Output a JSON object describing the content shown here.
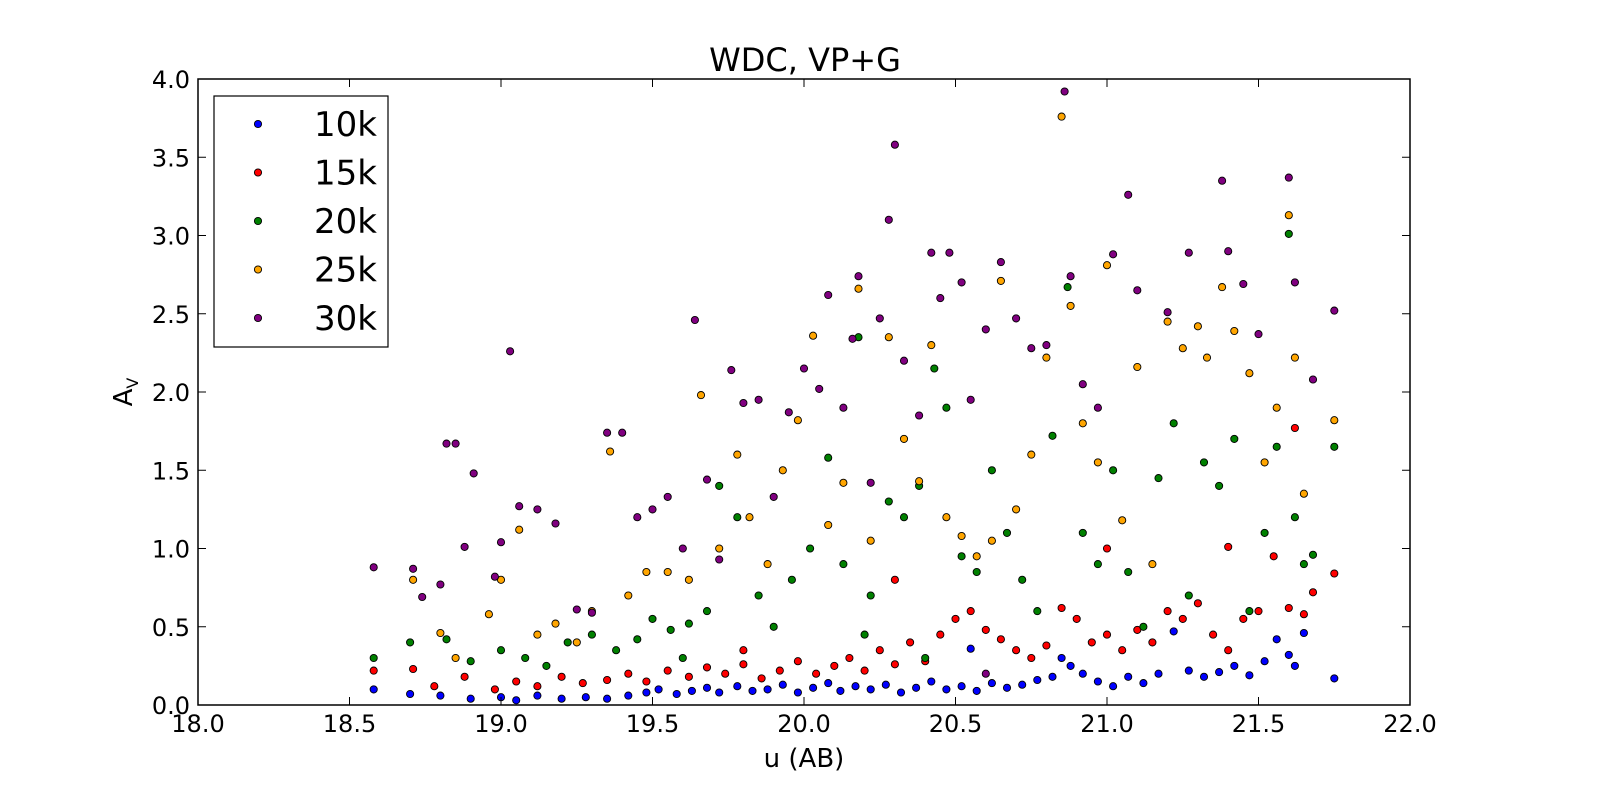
{
  "chart_data": {
    "type": "scatter",
    "title": "WDC, VP+G",
    "xlabel": "u (AB)",
    "ylabel_main": "A",
    "ylabel_sub": "V",
    "xlim": [
      18.0,
      22.0
    ],
    "ylim": [
      0.0,
      4.0
    ],
    "xticks": [
      "18.0",
      "18.5",
      "19.0",
      "19.5",
      "20.0",
      "20.5",
      "21.0",
      "21.5",
      "22.0"
    ],
    "yticks": [
      "0.0",
      "0.5",
      "1.0",
      "1.5",
      "2.0",
      "2.5",
      "3.0",
      "3.5",
      "4.0"
    ],
    "grid": false,
    "legend_position": "top-left",
    "series": [
      {
        "name": "10k",
        "color": "#0000ff",
        "points": [
          [
            18.58,
            0.1
          ],
          [
            18.7,
            0.07
          ],
          [
            18.8,
            0.06
          ],
          [
            18.9,
            0.04
          ],
          [
            19.0,
            0.05
          ],
          [
            19.05,
            0.03
          ],
          [
            19.12,
            0.06
          ],
          [
            19.2,
            0.04
          ],
          [
            19.28,
            0.05
          ],
          [
            19.35,
            0.04
          ],
          [
            19.42,
            0.06
          ],
          [
            19.48,
            0.08
          ],
          [
            19.52,
            0.1
          ],
          [
            19.58,
            0.07
          ],
          [
            19.63,
            0.09
          ],
          [
            19.68,
            0.11
          ],
          [
            19.72,
            0.08
          ],
          [
            19.78,
            0.12
          ],
          [
            19.83,
            0.09
          ],
          [
            19.88,
            0.1
          ],
          [
            19.93,
            0.13
          ],
          [
            19.98,
            0.08
          ],
          [
            20.03,
            0.11
          ],
          [
            20.08,
            0.14
          ],
          [
            20.12,
            0.09
          ],
          [
            20.17,
            0.12
          ],
          [
            20.22,
            0.1
          ],
          [
            20.27,
            0.13
          ],
          [
            20.32,
            0.08
          ],
          [
            20.37,
            0.11
          ],
          [
            20.42,
            0.15
          ],
          [
            20.47,
            0.1
          ],
          [
            20.52,
            0.12
          ],
          [
            20.57,
            0.09
          ],
          [
            20.62,
            0.14
          ],
          [
            20.67,
            0.11
          ],
          [
            20.72,
            0.13
          ],
          [
            20.77,
            0.16
          ],
          [
            20.82,
            0.18
          ],
          [
            20.85,
            0.3
          ],
          [
            20.88,
            0.25
          ],
          [
            20.92,
            0.2
          ],
          [
            20.97,
            0.15
          ],
          [
            21.02,
            0.12
          ],
          [
            21.07,
            0.18
          ],
          [
            21.12,
            0.14
          ],
          [
            21.17,
            0.2
          ],
          [
            21.22,
            0.47
          ],
          [
            21.27,
            0.22
          ],
          [
            21.32,
            0.18
          ],
          [
            21.37,
            0.21
          ],
          [
            21.42,
            0.25
          ],
          [
            21.47,
            0.19
          ],
          [
            21.52,
            0.28
          ],
          [
            21.56,
            0.42
          ],
          [
            21.6,
            0.32
          ],
          [
            21.62,
            0.25
          ],
          [
            21.65,
            0.46
          ],
          [
            21.75,
            0.17
          ],
          [
            20.55,
            0.36
          ]
        ]
      },
      {
        "name": "15k",
        "color": "#ff0000",
        "points": [
          [
            18.58,
            0.22
          ],
          [
            18.71,
            0.23
          ],
          [
            18.78,
            0.12
          ],
          [
            18.88,
            0.18
          ],
          [
            18.98,
            0.1
          ],
          [
            19.05,
            0.15
          ],
          [
            19.12,
            0.12
          ],
          [
            19.2,
            0.18
          ],
          [
            19.27,
            0.14
          ],
          [
            19.35,
            0.16
          ],
          [
            19.42,
            0.2
          ],
          [
            19.48,
            0.15
          ],
          [
            19.55,
            0.22
          ],
          [
            19.62,
            0.18
          ],
          [
            19.68,
            0.24
          ],
          [
            19.74,
            0.2
          ],
          [
            19.8,
            0.26
          ],
          [
            19.86,
            0.17
          ],
          [
            19.92,
            0.22
          ],
          [
            19.98,
            0.28
          ],
          [
            20.04,
            0.2
          ],
          [
            20.1,
            0.25
          ],
          [
            20.15,
            0.3
          ],
          [
            20.2,
            0.22
          ],
          [
            20.25,
            0.35
          ],
          [
            20.3,
            0.26
          ],
          [
            20.35,
            0.4
          ],
          [
            20.4,
            0.28
          ],
          [
            20.45,
            0.45
          ],
          [
            20.5,
            0.55
          ],
          [
            20.55,
            0.6
          ],
          [
            20.6,
            0.48
          ],
          [
            20.65,
            0.42
          ],
          [
            20.7,
            0.35
          ],
          [
            20.75,
            0.3
          ],
          [
            20.8,
            0.38
          ],
          [
            20.85,
            0.62
          ],
          [
            20.9,
            0.55
          ],
          [
            20.95,
            0.4
          ],
          [
            21.0,
            0.45
          ],
          [
            21.05,
            0.35
          ],
          [
            21.1,
            0.48
          ],
          [
            21.15,
            0.4
          ],
          [
            21.2,
            0.6
          ],
          [
            21.25,
            0.55
          ],
          [
            21.3,
            0.65
          ],
          [
            21.35,
            0.45
          ],
          [
            21.4,
            0.35
          ],
          [
            21.45,
            0.55
          ],
          [
            21.5,
            0.6
          ],
          [
            21.55,
            0.95
          ],
          [
            21.6,
            0.62
          ],
          [
            21.62,
            1.77
          ],
          [
            21.65,
            0.58
          ],
          [
            21.68,
            0.72
          ],
          [
            21.75,
            0.84
          ],
          [
            21.0,
            1.0
          ],
          [
            21.4,
            1.01
          ],
          [
            20.3,
            0.8
          ],
          [
            19.8,
            0.35
          ]
        ]
      },
      {
        "name": "20k",
        "color": "#008000",
        "points": [
          [
            18.58,
            0.3
          ],
          [
            18.7,
            0.4
          ],
          [
            18.82,
            0.42
          ],
          [
            18.9,
            0.28
          ],
          [
            19.0,
            0.35
          ],
          [
            19.08,
            0.3
          ],
          [
            19.15,
            0.25
          ],
          [
            19.22,
            0.4
          ],
          [
            19.3,
            0.45
          ],
          [
            19.38,
            0.35
          ],
          [
            19.45,
            0.42
          ],
          [
            19.5,
            0.55
          ],
          [
            19.56,
            0.48
          ],
          [
            19.62,
            0.52
          ],
          [
            19.68,
            0.6
          ],
          [
            19.72,
            1.4
          ],
          [
            19.78,
            1.2
          ],
          [
            19.85,
            0.7
          ],
          [
            19.9,
            0.5
          ],
          [
            19.96,
            0.8
          ],
          [
            20.02,
            1.0
          ],
          [
            20.08,
            1.58
          ],
          [
            20.13,
            0.9
          ],
          [
            20.18,
            2.35
          ],
          [
            20.22,
            0.7
          ],
          [
            20.28,
            1.3
          ],
          [
            20.33,
            1.2
          ],
          [
            20.38,
            1.4
          ],
          [
            20.43,
            2.15
          ],
          [
            20.47,
            1.9
          ],
          [
            20.52,
            0.95
          ],
          [
            20.57,
            0.85
          ],
          [
            20.62,
            1.5
          ],
          [
            20.67,
            1.1
          ],
          [
            20.72,
            0.8
          ],
          [
            20.77,
            0.6
          ],
          [
            20.82,
            1.72
          ],
          [
            20.87,
            2.67
          ],
          [
            20.92,
            1.1
          ],
          [
            20.97,
            0.9
          ],
          [
            21.02,
            1.5
          ],
          [
            21.07,
            0.85
          ],
          [
            21.12,
            0.5
          ],
          [
            21.17,
            1.45
          ],
          [
            21.22,
            1.8
          ],
          [
            21.27,
            0.7
          ],
          [
            21.32,
            1.55
          ],
          [
            21.37,
            1.4
          ],
          [
            21.42,
            1.7
          ],
          [
            21.47,
            0.6
          ],
          [
            21.52,
            1.1
          ],
          [
            21.56,
            1.65
          ],
          [
            21.6,
            3.01
          ],
          [
            21.62,
            1.2
          ],
          [
            21.65,
            0.9
          ],
          [
            21.68,
            0.96
          ],
          [
            21.75,
            1.65
          ],
          [
            20.4,
            0.3
          ],
          [
            20.2,
            0.45
          ],
          [
            19.6,
            0.3
          ]
        ]
      },
      {
        "name": "25k",
        "color": "#ffa500",
        "points": [
          [
            18.71,
            0.8
          ],
          [
            18.8,
            0.46
          ],
          [
            18.85,
            0.3
          ],
          [
            18.96,
            0.58
          ],
          [
            19.0,
            0.8
          ],
          [
            19.06,
            1.12
          ],
          [
            19.12,
            0.45
          ],
          [
            19.18,
            0.52
          ],
          [
            19.25,
            0.4
          ],
          [
            19.3,
            0.6
          ],
          [
            19.36,
            1.62
          ],
          [
            19.42,
            0.7
          ],
          [
            19.48,
            0.85
          ],
          [
            19.55,
            0.85
          ],
          [
            19.62,
            0.8
          ],
          [
            19.66,
            1.98
          ],
          [
            19.72,
            1.0
          ],
          [
            19.78,
            1.6
          ],
          [
            19.82,
            1.2
          ],
          [
            19.88,
            0.9
          ],
          [
            19.93,
            1.5
          ],
          [
            19.98,
            1.82
          ],
          [
            20.03,
            2.36
          ],
          [
            20.08,
            1.15
          ],
          [
            20.13,
            1.42
          ],
          [
            20.18,
            2.66
          ],
          [
            20.22,
            1.05
          ],
          [
            20.28,
            2.35
          ],
          [
            20.33,
            1.7
          ],
          [
            20.38,
            1.43
          ],
          [
            20.42,
            2.3
          ],
          [
            20.47,
            1.2
          ],
          [
            20.52,
            1.08
          ],
          [
            20.57,
            0.95
          ],
          [
            20.62,
            1.05
          ],
          [
            20.65,
            2.71
          ],
          [
            20.7,
            1.25
          ],
          [
            20.75,
            1.6
          ],
          [
            20.8,
            2.22
          ],
          [
            20.85,
            3.76
          ],
          [
            20.88,
            2.55
          ],
          [
            20.92,
            1.8
          ],
          [
            20.97,
            1.55
          ],
          [
            21.0,
            2.81
          ],
          [
            21.05,
            1.18
          ],
          [
            21.1,
            2.16
          ],
          [
            21.15,
            0.9
          ],
          [
            21.2,
            2.45
          ],
          [
            21.25,
            2.28
          ],
          [
            21.3,
            2.42
          ],
          [
            21.33,
            2.22
          ],
          [
            21.38,
            2.67
          ],
          [
            21.42,
            2.39
          ],
          [
            21.47,
            2.12
          ],
          [
            21.52,
            1.55
          ],
          [
            21.56,
            1.9
          ],
          [
            21.6,
            3.13
          ],
          [
            21.62,
            2.22
          ],
          [
            21.65,
            1.35
          ],
          [
            21.75,
            1.82
          ]
        ]
      },
      {
        "name": "30k",
        "color": "#800080",
        "points": [
          [
            18.58,
            0.88
          ],
          [
            18.71,
            0.87
          ],
          [
            18.74,
            0.69
          ],
          [
            18.8,
            0.77
          ],
          [
            18.82,
            1.67
          ],
          [
            18.85,
            1.67
          ],
          [
            18.88,
            1.01
          ],
          [
            18.91,
            1.48
          ],
          [
            18.98,
            0.82
          ],
          [
            19.0,
            1.04
          ],
          [
            19.03,
            2.26
          ],
          [
            19.06,
            1.27
          ],
          [
            19.12,
            1.25
          ],
          [
            19.18,
            1.16
          ],
          [
            19.25,
            0.61
          ],
          [
            19.3,
            0.59
          ],
          [
            19.35,
            1.74
          ],
          [
            19.4,
            1.74
          ],
          [
            19.45,
            1.2
          ],
          [
            19.5,
            1.25
          ],
          [
            19.55,
            1.33
          ],
          [
            19.6,
            1.0
          ],
          [
            19.64,
            2.46
          ],
          [
            19.68,
            1.44
          ],
          [
            19.72,
            0.93
          ],
          [
            19.76,
            2.14
          ],
          [
            19.8,
            1.93
          ],
          [
            19.85,
            1.95
          ],
          [
            19.9,
            1.33
          ],
          [
            19.95,
            1.87
          ],
          [
            20.0,
            2.15
          ],
          [
            20.05,
            2.02
          ],
          [
            20.08,
            2.62
          ],
          [
            20.13,
            1.9
          ],
          [
            20.16,
            2.34
          ],
          [
            20.18,
            2.74
          ],
          [
            20.22,
            1.42
          ],
          [
            20.25,
            2.47
          ],
          [
            20.3,
            3.58
          ],
          [
            20.28,
            3.1
          ],
          [
            20.33,
            2.2
          ],
          [
            20.38,
            1.85
          ],
          [
            20.42,
            2.89
          ],
          [
            20.45,
            2.6
          ],
          [
            20.48,
            2.89
          ],
          [
            20.52,
            2.7
          ],
          [
            20.55,
            1.95
          ],
          [
            20.6,
            2.4
          ],
          [
            20.65,
            2.83
          ],
          [
            20.7,
            2.47
          ],
          [
            20.75,
            2.28
          ],
          [
            20.8,
            2.3
          ],
          [
            20.86,
            3.92
          ],
          [
            20.88,
            2.74
          ],
          [
            20.92,
            2.05
          ],
          [
            20.97,
            1.9
          ],
          [
            21.02,
            2.88
          ],
          [
            21.07,
            3.26
          ],
          [
            21.1,
            2.65
          ],
          [
            21.2,
            2.51
          ],
          [
            21.27,
            2.89
          ],
          [
            21.38,
            3.35
          ],
          [
            21.4,
            2.9
          ],
          [
            21.45,
            2.69
          ],
          [
            21.5,
            2.37
          ],
          [
            21.6,
            3.37
          ],
          [
            21.62,
            2.7
          ],
          [
            21.68,
            2.08
          ],
          [
            21.75,
            2.52
          ],
          [
            20.6,
            0.2
          ]
        ]
      }
    ]
  }
}
